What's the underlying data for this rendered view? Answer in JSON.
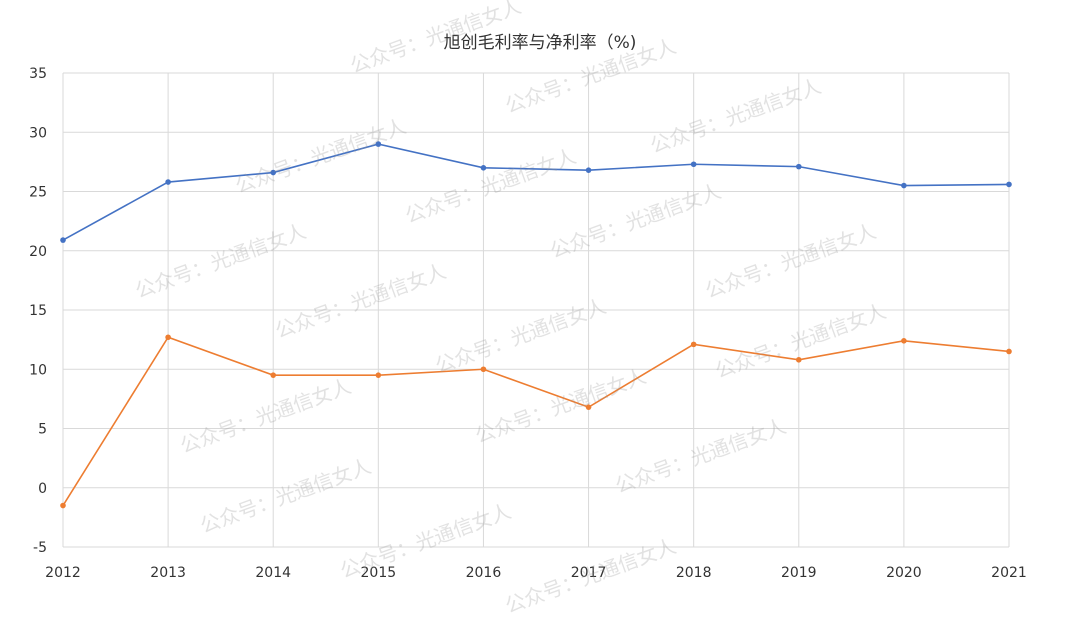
{
  "chart_data": {
    "type": "line",
    "title": "旭创毛利率与净利率（%)",
    "xlabel": "",
    "ylabel": "",
    "categories": [
      "2012",
      "2013",
      "2014",
      "2015",
      "2016",
      "2017",
      "2018",
      "2019",
      "2020",
      "2021"
    ],
    "ylim": [
      -5,
      35
    ],
    "yticks": [
      "-5",
      "0",
      "5",
      "10",
      "15",
      "20",
      "25",
      "30",
      "35"
    ],
    "grid": true,
    "legend": "none",
    "series": [
      {
        "name": "毛利率",
        "color": "#4472C4",
        "values": [
          20.9,
          25.8,
          26.6,
          29.0,
          27.0,
          26.8,
          27.3,
          27.1,
          25.5,
          25.6
        ]
      },
      {
        "name": "净利率",
        "color": "#ED7D31",
        "values": [
          -1.5,
          12.7,
          9.5,
          9.5,
          10.0,
          6.8,
          12.1,
          10.8,
          12.4,
          11.5
        ]
      }
    ]
  },
  "watermark": "公众号：光通信女人"
}
